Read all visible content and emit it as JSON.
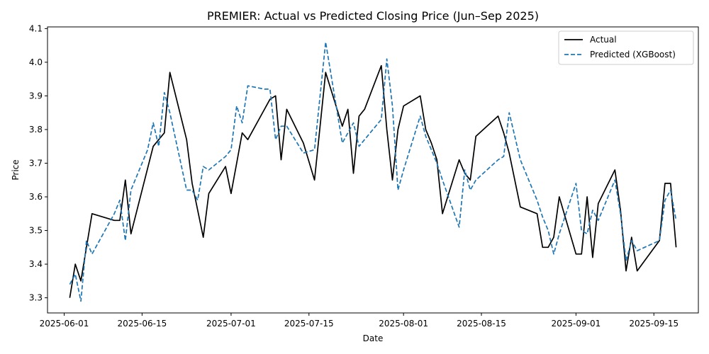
{
  "chart_data": {
    "type": "line",
    "title": "PREMIER: Actual vs Predicted Closing Price (Jun–Sep 2025)",
    "xlabel": "Date",
    "ylabel": "Price",
    "x_axis": "date",
    "xlim": [
      "2025-05-29",
      "2025-09-23"
    ],
    "ylim": [
      3.255,
      4.105
    ],
    "x_ticks": [
      "2025-06-01",
      "2025-06-15",
      "2025-07-01",
      "2025-07-15",
      "2025-08-01",
      "2025-08-15",
      "2025-09-01",
      "2025-09-15"
    ],
    "y_ticks": [
      "3.3",
      "3.4",
      "3.5",
      "3.6",
      "3.7",
      "3.8",
      "3.9",
      "4.0",
      "4.1"
    ],
    "grid": false,
    "legend_position": "top-right",
    "series": [
      {
        "name": "Actual",
        "color": "#000000",
        "style": "solid",
        "x": [
          "2025-06-02",
          "2025-06-03",
          "2025-06-04",
          "2025-06-06",
          "2025-06-10",
          "2025-06-11",
          "2025-06-12",
          "2025-06-13",
          "2025-06-17",
          "2025-06-18",
          "2025-06-19",
          "2025-06-20",
          "2025-06-23",
          "2025-06-24",
          "2025-06-26",
          "2025-06-27",
          "2025-06-30",
          "2025-07-01",
          "2025-07-02",
          "2025-07-03",
          "2025-07-04",
          "2025-07-07",
          "2025-07-08",
          "2025-07-09",
          "2025-07-10",
          "2025-07-11",
          "2025-07-14",
          "2025-07-16",
          "2025-07-18",
          "2025-07-21",
          "2025-07-22",
          "2025-07-23",
          "2025-07-24",
          "2025-07-25",
          "2025-07-28",
          "2025-07-29",
          "2025-07-30",
          "2025-07-31",
          "2025-08-01",
          "2025-08-04",
          "2025-08-05",
          "2025-08-06",
          "2025-08-07",
          "2025-08-08",
          "2025-08-11",
          "2025-08-12",
          "2025-08-13",
          "2025-08-14",
          "2025-08-18",
          "2025-08-19",
          "2025-08-20",
          "2025-08-22",
          "2025-08-25",
          "2025-08-26",
          "2025-08-27",
          "2025-08-28",
          "2025-08-29",
          "2025-09-01",
          "2025-09-02",
          "2025-09-03",
          "2025-09-04",
          "2025-09-05",
          "2025-09-08",
          "2025-09-09",
          "2025-09-10",
          "2025-09-11",
          "2025-09-12",
          "2025-09-16",
          "2025-09-17",
          "2025-09-18",
          "2025-09-19"
        ],
        "y": [
          3.3,
          3.4,
          3.35,
          3.55,
          3.53,
          3.53,
          3.65,
          3.49,
          3.75,
          3.77,
          3.79,
          3.97,
          3.77,
          3.64,
          3.48,
          3.61,
          3.69,
          3.61,
          3.7,
          3.79,
          3.77,
          3.86,
          3.89,
          3.9,
          3.71,
          3.86,
          3.76,
          3.65,
          3.97,
          3.81,
          3.86,
          3.67,
          3.84,
          3.86,
          3.99,
          3.8,
          3.65,
          3.8,
          3.87,
          3.9,
          3.8,
          3.76,
          3.71,
          3.55,
          3.71,
          3.67,
          3.65,
          3.78,
          3.84,
          3.79,
          3.73,
          3.57,
          3.55,
          3.45,
          3.45,
          3.48,
          3.6,
          3.43,
          3.43,
          3.6,
          3.42,
          3.58,
          3.68,
          3.56,
          3.38,
          3.48,
          3.38,
          3.47,
          3.64,
          3.64,
          3.45
        ]
      },
      {
        "name": "Predicted (XGBoost)",
        "color": "#1f77b4",
        "style": "dashed",
        "x": [
          "2025-06-02",
          "2025-06-03",
          "2025-06-04",
          "2025-06-05",
          "2025-06-06",
          "2025-06-10",
          "2025-06-11",
          "2025-06-12",
          "2025-06-13",
          "2025-06-16",
          "2025-06-17",
          "2025-06-18",
          "2025-06-19",
          "2025-06-20",
          "2025-06-23",
          "2025-06-24",
          "2025-06-25",
          "2025-06-26",
          "2025-06-27",
          "2025-06-30",
          "2025-07-01",
          "2025-07-02",
          "2025-07-03",
          "2025-07-04",
          "2025-07-07",
          "2025-07-08",
          "2025-07-09",
          "2025-07-10",
          "2025-07-11",
          "2025-07-14",
          "2025-07-16",
          "2025-07-18",
          "2025-07-21",
          "2025-07-22",
          "2025-07-23",
          "2025-07-24",
          "2025-07-25",
          "2025-07-28",
          "2025-07-29",
          "2025-07-30",
          "2025-07-31",
          "2025-08-01",
          "2025-08-04",
          "2025-08-05",
          "2025-08-06",
          "2025-08-07",
          "2025-08-08",
          "2025-08-11",
          "2025-08-12",
          "2025-08-13",
          "2025-08-14",
          "2025-08-18",
          "2025-08-19",
          "2025-08-20",
          "2025-08-22",
          "2025-08-25",
          "2025-08-26",
          "2025-08-27",
          "2025-08-28",
          "2025-08-29",
          "2025-09-01",
          "2025-09-02",
          "2025-09-03",
          "2025-09-04",
          "2025-09-05",
          "2025-09-08",
          "2025-09-09",
          "2025-09-10",
          "2025-09-11",
          "2025-09-12",
          "2025-09-16",
          "2025-09-17",
          "2025-09-18",
          "2025-09-19"
        ],
        "y": [
          3.34,
          3.37,
          3.29,
          3.47,
          3.43,
          3.55,
          3.59,
          3.47,
          3.62,
          3.74,
          3.82,
          3.75,
          3.91,
          3.85,
          3.62,
          3.62,
          3.59,
          3.69,
          3.68,
          3.72,
          3.74,
          3.87,
          3.82,
          3.93,
          3.92,
          3.92,
          3.77,
          3.81,
          3.81,
          3.73,
          3.74,
          4.06,
          3.76,
          3.79,
          3.82,
          3.75,
          3.77,
          3.83,
          4.01,
          3.87,
          3.62,
          3.68,
          3.84,
          3.78,
          3.74,
          3.7,
          3.65,
          3.51,
          3.68,
          3.62,
          3.65,
          3.71,
          3.72,
          3.85,
          3.71,
          3.59,
          3.54,
          3.5,
          3.43,
          3.49,
          3.64,
          3.5,
          3.49,
          3.56,
          3.53,
          3.65,
          3.55,
          3.41,
          3.47,
          3.44,
          3.47,
          3.59,
          3.62,
          3.53
        ]
      }
    ]
  }
}
